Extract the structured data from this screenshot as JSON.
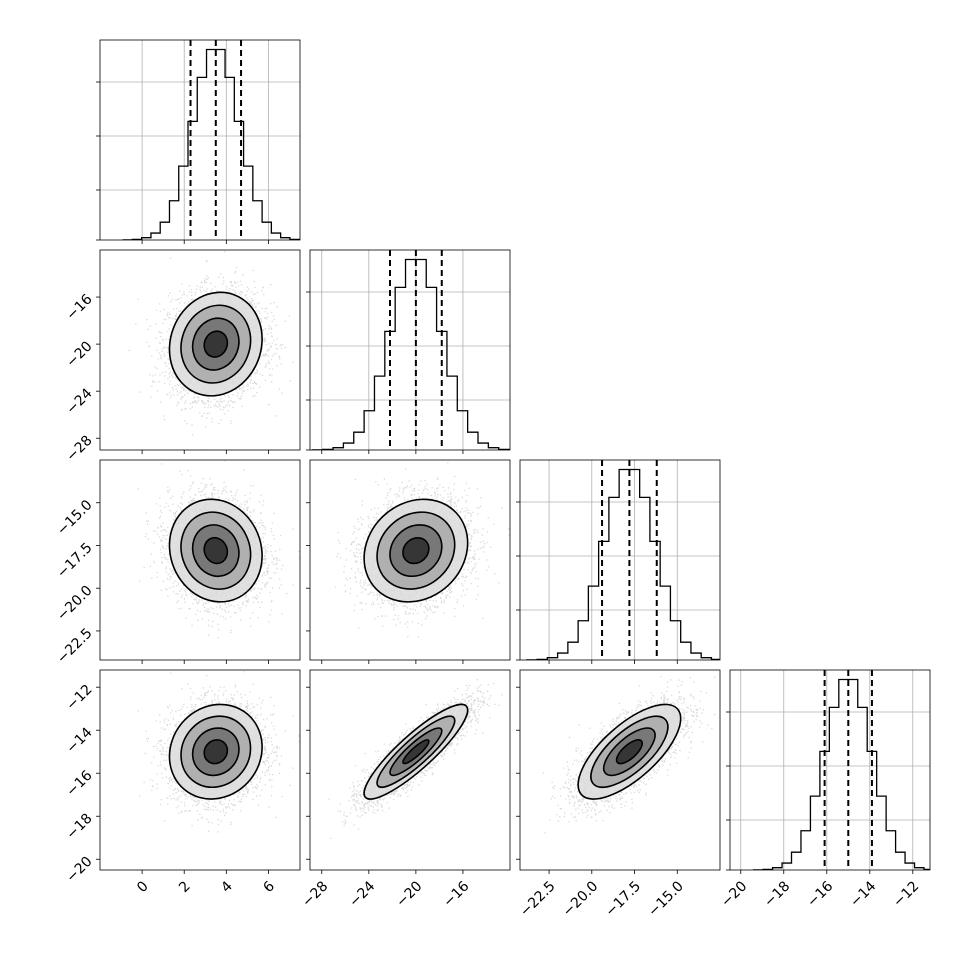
{
  "chart_data": {
    "type": "corner",
    "parameters": [
      {
        "label": "",
        "range": [
          -2.0,
          7.5
        ],
        "quantiles": [
          2.3,
          3.5,
          4.7
        ],
        "ticks": [
          0,
          2,
          4,
          6
        ],
        "tick_labels": [
          "0",
          "2",
          "4",
          "6"
        ],
        "center": 3.5,
        "sigma": 1.1
      },
      {
        "label": "",
        "range": [
          -29.0,
          -12.0
        ],
        "quantiles": [
          -22.2,
          -20.0,
          -17.8
        ],
        "ticks": [
          -28,
          -24,
          -20,
          -16
        ],
        "tick_labels": [
          "−28",
          "−24",
          "−20",
          "−16"
        ],
        "center": -20.0,
        "sigma": 2.2
      },
      {
        "label": "",
        "range": [
          -24.2,
          -12.5
        ],
        "quantiles": [
          -19.4,
          -17.8,
          -16.2
        ],
        "ticks": [
          -22.5,
          -20.0,
          -17.5,
          -15.0
        ],
        "tick_labels": [
          "−22.5",
          "−20.0",
          "−17.5",
          "−15.0"
        ],
        "center": -17.8,
        "sigma": 1.5
      },
      {
        "label": "",
        "range": [
          -20.5,
          -11.2
        ],
        "quantiles": [
          -16.1,
          -15.0,
          -13.9
        ],
        "ticks": [
          -20,
          -18,
          -16,
          -14,
          -12
        ],
        "tick_labels": [
          "−20",
          "−18",
          "−16",
          "−14",
          "−12"
        ],
        "center": -15.0,
        "sigma": 1.1
      }
    ],
    "correlations": {
      "1-0": 0.1,
      "2-0": -0.1,
      "2-1": 0.15,
      "3-0": 0.1,
      "3-1": 0.88,
      "3-2": 0.7
    },
    "n_samples": 4000,
    "histogram_bins": 20,
    "contour_levels_sigma": [
      0.5,
      1.0,
      1.5,
      2.0
    ],
    "grid": true,
    "colors": {
      "line": "#000000",
      "points": "#bbbbbb",
      "grid": "#b0b0b0"
    }
  }
}
